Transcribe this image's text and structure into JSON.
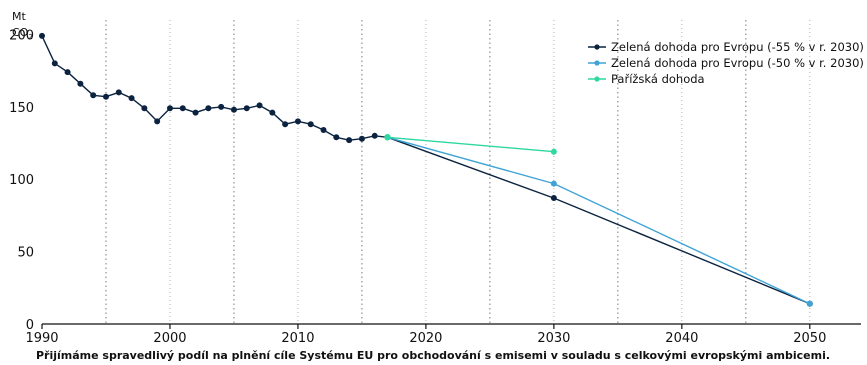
{
  "chart_data": {
    "type": "line",
    "ylabel": "Mt",
    "ylabel_line2": "CO",
    "ylabel_sub": "2",
    "xlim": [
      1990,
      2054
    ],
    "ylim": [
      0,
      210
    ],
    "x_ticks": [
      1990,
      2000,
      2010,
      2020,
      2030,
      2040,
      2050
    ],
    "y_ticks": [
      0,
      50,
      100,
      150,
      200
    ],
    "minor_grid_x": [
      1995,
      2005,
      2015,
      2025,
      2035,
      2045
    ],
    "grid": "vertical-dotted",
    "legend_position": "top-right",
    "caption": "Přijímáme spravedlivý podíl na plnění cíle Systému EU pro obchodování s emisemi v souladu s celkovými evropskými ambicemi.",
    "colors": {
      "historic": "#0c2340",
      "green_deal_55": "#0c2340",
      "green_deal_50": "#3fa3d6",
      "paris": "#2ed8a0"
    },
    "historic": {
      "x": [
        1990,
        1991,
        1992,
        1993,
        1994,
        1995,
        1996,
        1997,
        1998,
        1999,
        2000,
        2001,
        2002,
        2003,
        2004,
        2005,
        2006,
        2007,
        2008,
        2009,
        2010,
        2011,
        2012,
        2013,
        2014,
        2015,
        2016,
        2017
      ],
      "y": [
        199,
        180,
        174,
        166,
        158,
        157,
        160,
        156,
        149,
        140,
        149,
        149,
        146,
        149,
        150,
        148,
        149,
        151,
        146,
        138,
        140,
        138,
        134,
        129,
        127,
        128,
        130,
        129
      ]
    },
    "series": [
      {
        "name": "Zelená dohoda pro Evropu (-55 % v r. 2030)",
        "color_key": "green_deal_55",
        "x": [
          2017,
          2030,
          2050
        ],
        "y": [
          129,
          87,
          14
        ]
      },
      {
        "name": "Zelená dohoda pro Evropu (-50 % v r. 2030)",
        "color_key": "green_deal_50",
        "x": [
          2017,
          2030,
          2050
        ],
        "y": [
          129,
          97,
          14
        ]
      },
      {
        "name": "Pařížská dohoda",
        "color_key": "paris",
        "x": [
          2017,
          2030
        ],
        "y": [
          129,
          119
        ]
      }
    ]
  }
}
